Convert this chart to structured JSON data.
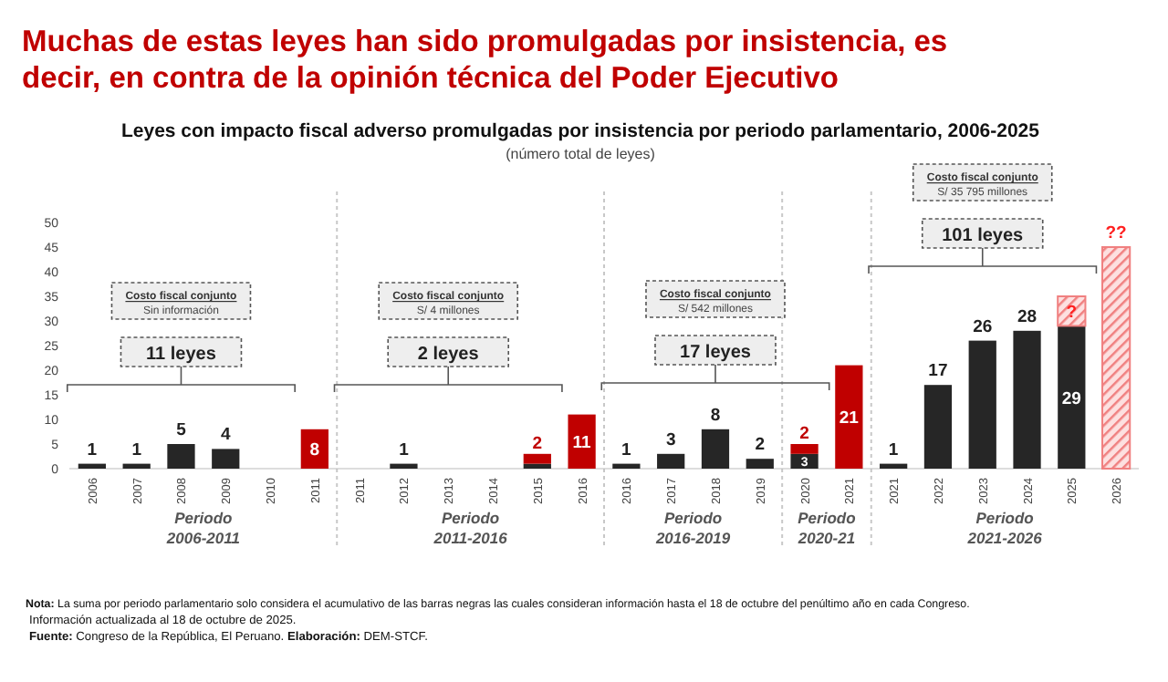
{
  "chart_data": {
    "type": "bar",
    "stacked": true,
    "title": "Muchas de estas leyes han sido promulgadas por insistencia, es decir, en contra de la opinión técnica del Poder Ejecutivo",
    "subtitle": "Leyes con impacto fiscal adverso promulgadas por insistencia por periodo parlamentario, 2006-2025",
    "ylabel": "(número total de leyes)",
    "categories": [
      "2006",
      "2007",
      "2008",
      "2009",
      "2010",
      "2011",
      "2011",
      "2012",
      "2013",
      "2014",
      "2015",
      "2016",
      "2016",
      "2017",
      "2018",
      "2019",
      "2020",
      "2021",
      "2021",
      "2022",
      "2023",
      "2024",
      "2025",
      "2026"
    ],
    "series": [
      {
        "color": "#262626",
        "values": [
          1,
          1,
          5,
          4,
          null,
          null,
          null,
          1,
          null,
          null,
          1,
          null,
          1,
          3,
          8,
          2,
          3,
          null,
          1,
          17,
          26,
          28,
          29,
          null
        ],
        "value_labels": [
          "1",
          "1",
          "5",
          "4",
          null,
          null,
          null,
          "1",
          null,
          null,
          null,
          null,
          "1",
          "3",
          "8",
          "2",
          "3",
          null,
          "1",
          "17",
          "26",
          "28",
          "29",
          null
        ]
      },
      {
        "color": "#c00000",
        "values": [
          null,
          null,
          null,
          null,
          null,
          8,
          null,
          null,
          null,
          null,
          2,
          11,
          null,
          null,
          null,
          null,
          2,
          21,
          null,
          null,
          null,
          null,
          null,
          null
        ],
        "value_labels": [
          null,
          null,
          null,
          null,
          null,
          "8",
          null,
          null,
          null,
          null,
          "2",
          "11",
          null,
          null,
          null,
          null,
          "2",
          "21",
          null,
          null,
          null,
          null,
          null,
          null
        ]
      },
      {
        "color": "#f08080",
        "values": [
          null,
          null,
          null,
          null,
          null,
          null,
          null,
          null,
          null,
          null,
          null,
          null,
          null,
          null,
          null,
          null,
          null,
          null,
          null,
          null,
          null,
          null,
          6,
          45
        ],
        "value_labels": [
          null,
          null,
          null,
          null,
          null,
          null,
          null,
          null,
          null,
          null,
          null,
          null,
          null,
          null,
          null,
          null,
          null,
          null,
          null,
          null,
          null,
          null,
          "?",
          "??"
        ]
      }
    ],
    "ylim": [
      0,
      50
    ],
    "yticks": [
      0,
      5,
      10,
      15,
      20,
      25,
      30,
      35,
      40,
      45,
      50
    ],
    "grid": false,
    "annotations": [
      "Periodo 2006-2011",
      "Periodo 2011-2016",
      "Periodo 2016-2019",
      "Periodo 2020-21",
      "Periodo 2021-2026",
      "Costo fiscal conjunto",
      "Sin información",
      "Costo fiscal conjunto",
      "S/ 4 millones",
      "Costo fiscal conjunto",
      "S/ 542 millones",
      "Costo fiscal conjunto",
      "S/ 35 795 millones",
      "11 leyes",
      "2 leyes",
      "17 leyes",
      "101 leyes",
      "Nota: La suma por periodo parlamentario solo considera el acumulativo de las barras negras las cuales consideran información hasta el 18 de octubre del penúltimo año en cada Congreso.",
      "Información actualizada al 18 de octubre de 2025.",
      "Fuente: Congreso de la República, El Peruano. Elaboración: DEM-STCF."
    ]
  }
}
